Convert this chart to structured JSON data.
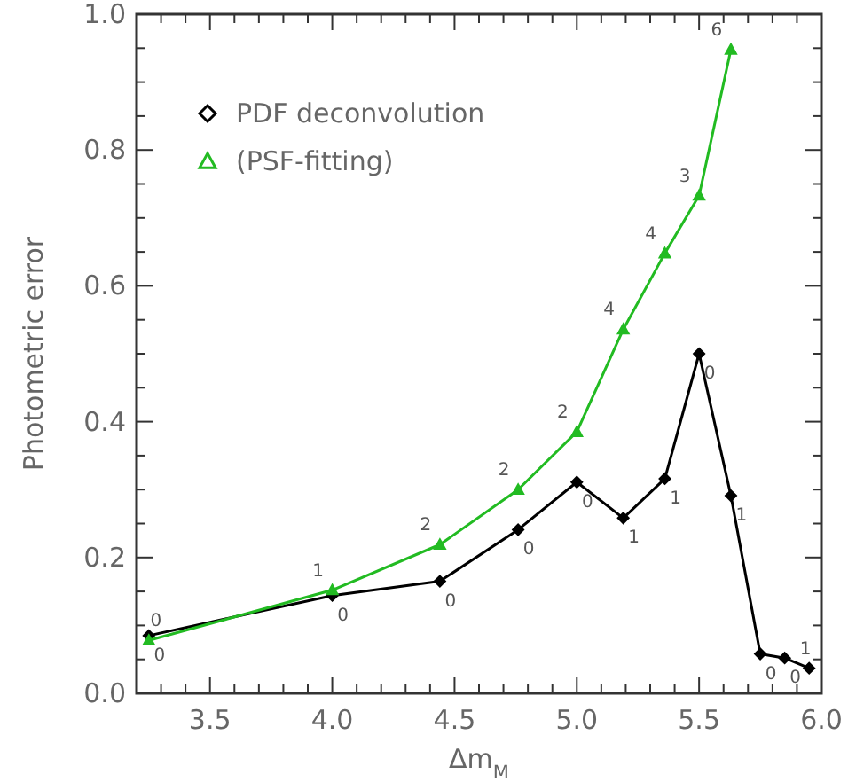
{
  "chart_data": {
    "type": "line",
    "xlabel": "Δm$_{M}$",
    "ylabel": "Photometric error",
    "xlim": [
      3.2,
      6.0
    ],
    "ylim": [
      0,
      1.0
    ],
    "xticks": [
      {
        "value": 3.2,
        "label": null
      },
      {
        "value": 3.3,
        "label": null
      },
      {
        "value": 3.4,
        "label": null
      },
      {
        "value": 3.5,
        "label": "3.5"
      },
      {
        "value": 3.6,
        "label": null
      },
      {
        "value": 3.7,
        "label": null
      },
      {
        "value": 3.8,
        "label": null
      },
      {
        "value": 3.9,
        "label": null
      },
      {
        "value": 4.0,
        "label": "4.0"
      },
      {
        "value": 4.1,
        "label": null
      },
      {
        "value": 4.2,
        "label": null
      },
      {
        "value": 4.3,
        "label": null
      },
      {
        "value": 4.4,
        "label": null
      },
      {
        "value": 4.5,
        "label": "4.5"
      },
      {
        "value": 4.6,
        "label": null
      },
      {
        "value": 4.7,
        "label": null
      },
      {
        "value": 4.8,
        "label": null
      },
      {
        "value": 4.9,
        "label": null
      },
      {
        "value": 5.0,
        "label": "5.0"
      },
      {
        "value": 5.1,
        "label": null
      },
      {
        "value": 5.2,
        "label": null
      },
      {
        "value": 5.3,
        "label": null
      },
      {
        "value": 5.4,
        "label": null
      },
      {
        "value": 5.5,
        "label": "5.5"
      },
      {
        "value": 5.6,
        "label": null
      },
      {
        "value": 5.7,
        "label": null
      },
      {
        "value": 5.8,
        "label": null
      },
      {
        "value": 5.9,
        "label": null
      },
      {
        "value": 6.0,
        "label": "6.0"
      }
    ],
    "yticks": [
      {
        "value": 0,
        "label": "0.0"
      },
      {
        "value": 0.05,
        "label": null
      },
      {
        "value": 0.1,
        "label": null
      },
      {
        "value": 0.15,
        "label": null
      },
      {
        "value": 0.2,
        "label": "0.2"
      },
      {
        "value": 0.25,
        "label": null
      },
      {
        "value": 0.3,
        "label": null
      },
      {
        "value": 0.35,
        "label": null
      },
      {
        "value": 0.4,
        "label": "0.4"
      },
      {
        "value": 0.45,
        "label": null
      },
      {
        "value": 0.5,
        "label": null
      },
      {
        "value": 0.55,
        "label": null
      },
      {
        "value": 0.6,
        "label": "0.6"
      },
      {
        "value": 0.65,
        "label": null
      },
      {
        "value": 0.7,
        "label": null
      },
      {
        "value": 0.75,
        "label": null
      },
      {
        "value": 0.8,
        "label": "0.8"
      },
      {
        "value": 0.85,
        "label": null
      },
      {
        "value": 0.9,
        "label": null
      },
      {
        "value": 0.95,
        "label": null
      },
      {
        "value": 1.0,
        "label": "1.0"
      }
    ],
    "grid": false,
    "legend": "top left",
    "line_style": "solid",
    "series": [
      {
        "name": "PDF deconvolution",
        "color": "#000000",
        "marker": "diamond",
        "x": [
          3.25,
          4.0,
          4.44,
          4.76,
          5.0,
          5.19,
          5.36,
          5.5,
          5.63,
          5.75,
          5.85,
          5.95
        ],
        "values": [
          0.085,
          0.144,
          0.165,
          0.241,
          0.311,
          0.258,
          0.316,
          0.5,
          0.291,
          0.058,
          0.052,
          0.037
        ]
      },
      {
        "name": "(PSF-fitting)",
        "color": "#22bb22",
        "marker": "triangle",
        "x": [
          3.25,
          4.0,
          4.44,
          4.76,
          5.0,
          5.19,
          5.36,
          5.5,
          5.63
        ],
        "values": [
          0.078,
          0.152,
          0.219,
          0.3,
          0.385,
          0.536,
          0.648,
          0.733,
          0.948
        ]
      }
    ],
    "annotations": [
      {
        "text": "0",
        "x": 3.25,
        "y": 0.085
      },
      {
        "text": "0",
        "x": 4.0,
        "y": 0.144
      },
      {
        "text": "0",
        "x": 4.44,
        "y": 0.165
      },
      {
        "text": "0",
        "x": 4.76,
        "y": 0.241
      },
      {
        "text": "0",
        "x": 5.0,
        "y": 0.311
      },
      {
        "text": "1",
        "x": 5.19,
        "y": 0.258
      },
      {
        "text": "1",
        "x": 5.36,
        "y": 0.316
      },
      {
        "text": "0",
        "x": 5.5,
        "y": 0.5
      },
      {
        "text": "1",
        "x": 5.63,
        "y": 0.291
      },
      {
        "text": "0",
        "x": 5.75,
        "y": 0.058
      },
      {
        "text": "0",
        "x": 5.85,
        "y": 0.052
      },
      {
        "text": "1",
        "x": 5.95,
        "y": 0.037
      },
      {
        "text": "0",
        "x": 3.25,
        "y": 0.078
      },
      {
        "text": "1",
        "x": 4.0,
        "y": 0.152
      },
      {
        "text": "2",
        "x": 4.44,
        "y": 0.219
      },
      {
        "text": "2",
        "x": 4.76,
        "y": 0.3
      },
      {
        "text": "2",
        "x": 5.0,
        "y": 0.385
      },
      {
        "text": "4",
        "x": 5.19,
        "y": 0.536
      },
      {
        "text": "4",
        "x": 5.36,
        "y": 0.648
      },
      {
        "text": "3",
        "x": 5.5,
        "y": 0.733
      },
      {
        "text": "6",
        "x": 5.63,
        "y": 0.948
      }
    ]
  }
}
